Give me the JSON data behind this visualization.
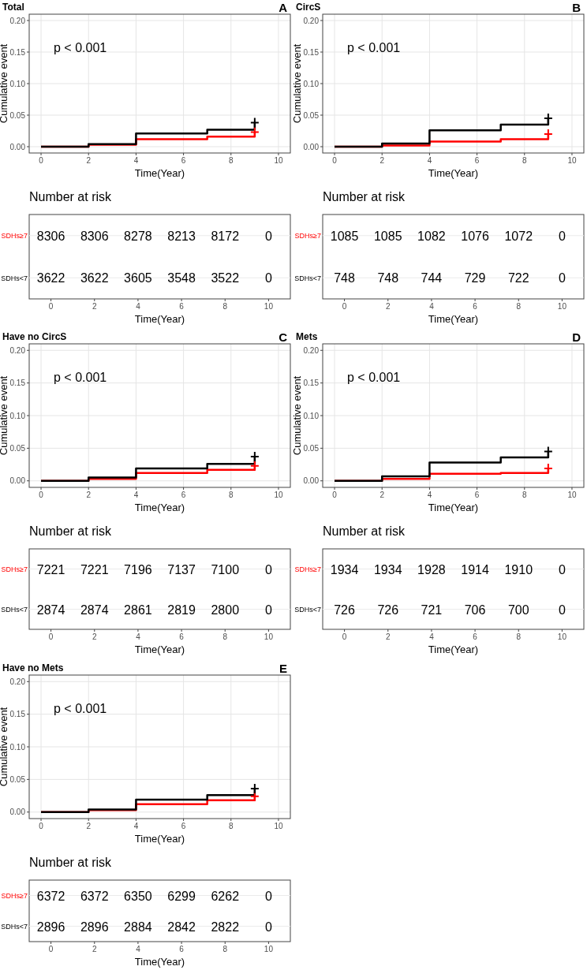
{
  "chart_data": [
    {
      "type": "step",
      "title": "Total",
      "annotations": [
        "A",
        "p < 0.001"
      ],
      "xlabel": "Time(Year)",
      "ylabel": "Cumulative event",
      "xlim": [
        -0.5,
        10.5
      ],
      "ylim": [
        -0.01,
        0.21
      ],
      "xticks": [
        0,
        2,
        4,
        6,
        8,
        10
      ],
      "yticks": [
        {
          "value": 0,
          "label": "0.00"
        },
        {
          "value": 0.05,
          "label": "0.05"
        },
        {
          "value": 0.1,
          "label": "0.10"
        },
        {
          "value": 0.15,
          "label": "0.15"
        },
        {
          "value": 0.2,
          "label": "0.20"
        }
      ],
      "grid": true,
      "series": [
        {
          "type": "step",
          "color": "#ff0000",
          "x": [
            0,
            2,
            4,
            7,
            9
          ],
          "values": [
            0,
            0.003,
            0.012,
            0.016,
            0.023
          ]
        },
        {
          "type": "step",
          "color": "#000000",
          "x": [
            0,
            2,
            4,
            7,
            9
          ],
          "values": [
            0,
            0.004,
            0.021,
            0.027,
            0.038
          ]
        },
        {
          "type": "scatter",
          "marker": "cross",
          "color": "#ff0000",
          "x": [
            9
          ],
          "values": [
            0.023
          ]
        },
        {
          "type": "scatter",
          "marker": "cross",
          "color": "#000000",
          "x": [
            9
          ],
          "values": [
            0.038
          ]
        }
      ]
    },
    {
      "type": "heatmap",
      "title": "Number at risk",
      "xlabel": "Time(Year)",
      "categories": [
        "0",
        "2",
        "4",
        "6",
        "8",
        "10"
      ],
      "y_categories": [
        "SDHs≥7",
        "SDHs<7"
      ],
      "data_labels": true,
      "cells": [
        [
          8306,
          8306,
          8278,
          8213,
          8172,
          0
        ],
        [
          3622,
          3622,
          3605,
          3548,
          3522,
          0
        ]
      ]
    },
    {
      "type": "step",
      "title": "CircS",
      "annotations": [
        "B",
        "p < 0.001"
      ],
      "xlabel": "Time(Year)",
      "ylabel": "Cumulative event",
      "xlim": [
        -0.5,
        10.5
      ],
      "ylim": [
        -0.01,
        0.21
      ],
      "xticks": [
        0,
        2,
        4,
        6,
        8,
        10
      ],
      "yticks": [
        {
          "value": 0,
          "label": "0.00"
        },
        {
          "value": 0.05,
          "label": "0.05"
        },
        {
          "value": 0.1,
          "label": "0.10"
        },
        {
          "value": 0.15,
          "label": "0.15"
        },
        {
          "value": 0.2,
          "label": "0.20"
        }
      ],
      "grid": true,
      "series": [
        {
          "type": "step",
          "color": "#ff0000",
          "x": [
            0,
            2,
            4,
            7,
            9
          ],
          "values": [
            0,
            0.002,
            0.008,
            0.012,
            0.02
          ]
        },
        {
          "type": "step",
          "color": "#000000",
          "x": [
            0,
            2,
            4,
            7,
            9
          ],
          "values": [
            0,
            0.005,
            0.026,
            0.035,
            0.045
          ]
        },
        {
          "type": "scatter",
          "marker": "cross",
          "color": "#ff0000",
          "x": [
            9
          ],
          "values": [
            0.02
          ]
        },
        {
          "type": "scatter",
          "marker": "cross",
          "color": "#000000",
          "x": [
            9
          ],
          "values": [
            0.045
          ]
        }
      ]
    },
    {
      "type": "heatmap",
      "title": "Number at risk",
      "xlabel": "Time(Year)",
      "categories": [
        "0",
        "2",
        "4",
        "6",
        "8",
        "10"
      ],
      "y_categories": [
        "SDHs≥7",
        "SDHs<7"
      ],
      "data_labels": true,
      "cells": [
        [
          1085,
          1085,
          1082,
          1076,
          1072,
          0
        ],
        [
          748,
          748,
          744,
          729,
          722,
          0
        ]
      ]
    },
    {
      "type": "step",
      "title": "Have no CircS",
      "annotations": [
        "C",
        "p < 0.001"
      ],
      "xlabel": "Time(Year)",
      "ylabel": "Cumulative event",
      "xlim": [
        -0.5,
        10.5
      ],
      "ylim": [
        -0.01,
        0.21
      ],
      "xticks": [
        0,
        2,
        4,
        6,
        8,
        10
      ],
      "yticks": [
        {
          "value": 0,
          "label": "0.00"
        },
        {
          "value": 0.05,
          "label": "0.05"
        },
        {
          "value": 0.1,
          "label": "0.10"
        },
        {
          "value": 0.15,
          "label": "0.15"
        },
        {
          "value": 0.2,
          "label": "0.20"
        }
      ],
      "grid": true,
      "series": [
        {
          "type": "step",
          "color": "#ff0000",
          "x": [
            0,
            2,
            4,
            7,
            9
          ],
          "values": [
            0,
            0.003,
            0.012,
            0.017,
            0.023
          ]
        },
        {
          "type": "step",
          "color": "#000000",
          "x": [
            0,
            2,
            4,
            7,
            9
          ],
          "values": [
            0,
            0.005,
            0.019,
            0.026,
            0.037
          ]
        },
        {
          "type": "scatter",
          "marker": "cross",
          "color": "#ff0000",
          "x": [
            9
          ],
          "values": [
            0.023
          ]
        },
        {
          "type": "scatter",
          "marker": "cross",
          "color": "#000000",
          "x": [
            9
          ],
          "values": [
            0.037
          ]
        }
      ]
    },
    {
      "type": "heatmap",
      "title": "Number at risk",
      "xlabel": "Time(Year)",
      "categories": [
        "0",
        "2",
        "4",
        "6",
        "8",
        "10"
      ],
      "y_categories": [
        "SDHs≥7",
        "SDHs<7"
      ],
      "data_labels": true,
      "cells": [
        [
          7221,
          7221,
          7196,
          7137,
          7100,
          0
        ],
        [
          2874,
          2874,
          2861,
          2819,
          2800,
          0
        ]
      ]
    },
    {
      "type": "step",
      "title": "Mets",
      "annotations": [
        "D",
        "p < 0.001"
      ],
      "xlabel": "Time(Year)",
      "ylabel": "Cumulative event",
      "xlim": [
        -0.5,
        10.5
      ],
      "ylim": [
        -0.01,
        0.21
      ],
      "xticks": [
        0,
        2,
        4,
        6,
        8,
        10
      ],
      "yticks": [
        {
          "value": 0,
          "label": "0.00"
        },
        {
          "value": 0.05,
          "label": "0.05"
        },
        {
          "value": 0.1,
          "label": "0.10"
        },
        {
          "value": 0.15,
          "label": "0.15"
        },
        {
          "value": 0.2,
          "label": "0.20"
        }
      ],
      "grid": true,
      "series": [
        {
          "type": "step",
          "color": "#ff0000",
          "x": [
            0,
            2,
            4,
            7,
            9
          ],
          "values": [
            0,
            0.003,
            0.011,
            0.012,
            0.019
          ]
        },
        {
          "type": "step",
          "color": "#000000",
          "x": [
            0,
            2,
            4,
            7,
            9
          ],
          "values": [
            0,
            0.007,
            0.028,
            0.036,
            0.045
          ]
        },
        {
          "type": "scatter",
          "marker": "cross",
          "color": "#ff0000",
          "x": [
            9
          ],
          "values": [
            0.019
          ]
        },
        {
          "type": "scatter",
          "marker": "cross",
          "color": "#000000",
          "x": [
            9
          ],
          "values": [
            0.045
          ]
        }
      ]
    },
    {
      "type": "heatmap",
      "title": "Number at risk",
      "xlabel": "Time(Year)",
      "categories": [
        "0",
        "2",
        "4",
        "6",
        "8",
        "10"
      ],
      "y_categories": [
        "SDHs≥7",
        "SDHs<7"
      ],
      "data_labels": true,
      "cells": [
        [
          1934,
          1934,
          1928,
          1914,
          1910,
          0
        ],
        [
          726,
          726,
          721,
          706,
          700,
          0
        ]
      ]
    },
    {
      "type": "step",
      "title": "Have no Mets",
      "annotations": [
        "E",
        "p < 0.001"
      ],
      "xlabel": "Time(Year)",
      "ylabel": "Cumulative event",
      "xlim": [
        -0.5,
        10.5
      ],
      "ylim": [
        -0.01,
        0.21
      ],
      "xticks": [
        0,
        2,
        4,
        6,
        8,
        10
      ],
      "yticks": [
        {
          "value": 0,
          "label": "0.00"
        },
        {
          "value": 0.05,
          "label": "0.05"
        },
        {
          "value": 0.1,
          "label": "0.10"
        },
        {
          "value": 0.15,
          "label": "0.15"
        },
        {
          "value": 0.2,
          "label": "0.20"
        }
      ],
      "grid": true,
      "series": [
        {
          "type": "step",
          "color": "#ff0000",
          "x": [
            0,
            2,
            4,
            7,
            9
          ],
          "values": [
            0,
            0.003,
            0.012,
            0.018,
            0.024
          ]
        },
        {
          "type": "step",
          "color": "#000000",
          "x": [
            0,
            2,
            4,
            7,
            9
          ],
          "values": [
            0,
            0.004,
            0.019,
            0.026,
            0.036
          ]
        },
        {
          "type": "scatter",
          "marker": "cross",
          "color": "#ff0000",
          "x": [
            9
          ],
          "values": [
            0.024
          ]
        },
        {
          "type": "scatter",
          "marker": "cross",
          "color": "#000000",
          "x": [
            9
          ],
          "values": [
            0.036
          ]
        }
      ]
    },
    {
      "type": "heatmap",
      "title": "Number at risk",
      "xlabel": "Time(Year)",
      "categories": [
        "0",
        "2",
        "4",
        "6",
        "8",
        "10"
      ],
      "y_categories": [
        "SDHs≥7",
        "SDHs<7"
      ],
      "data_labels": true,
      "cells": [
        [
          6372,
          6372,
          6350,
          6299,
          6262,
          0
        ],
        [
          2896,
          2896,
          2884,
          2842,
          2822,
          0
        ]
      ]
    }
  ]
}
